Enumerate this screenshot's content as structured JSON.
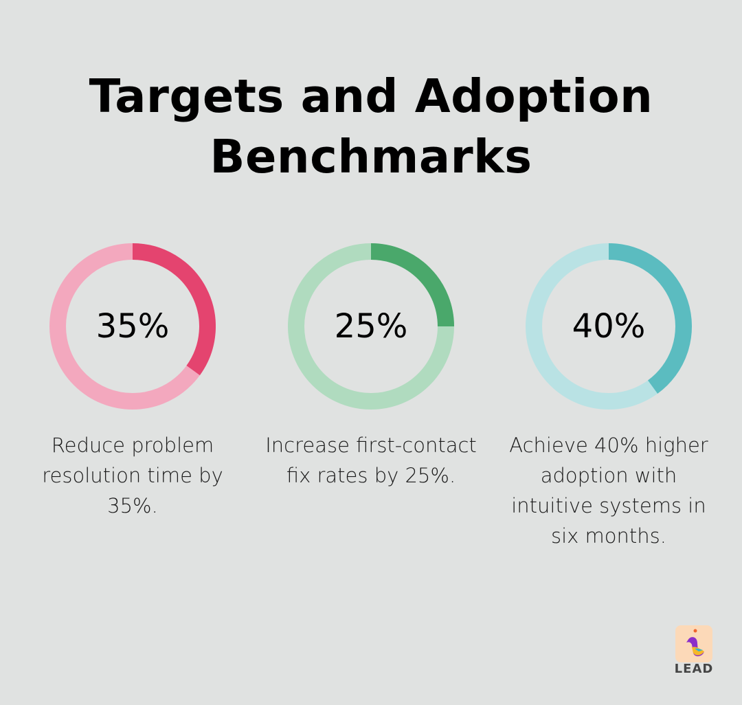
{
  "title": "Targets and Adoption Benchmarks",
  "chart_data": [
    {
      "type": "pie",
      "style": "donut",
      "value": 35,
      "label": "35%",
      "description": "Reduce problem resolution time by 35%.",
      "color": "#e4446f",
      "track_color": "#f3a8be"
    },
    {
      "type": "pie",
      "style": "donut",
      "value": 25,
      "label": "25%",
      "description": "Increase first-contact fix rates by 25%.",
      "color": "#4aa86b",
      "track_color": "#b0dbbf"
    },
    {
      "type": "pie",
      "style": "donut",
      "value": 40,
      "label": "40%",
      "description": "Achieve 40% higher adoption with intuitive systems in six months.",
      "color": "#5bbcc0",
      "track_color": "#b9e2e4"
    }
  ],
  "logo": {
    "text": "LEAD"
  }
}
